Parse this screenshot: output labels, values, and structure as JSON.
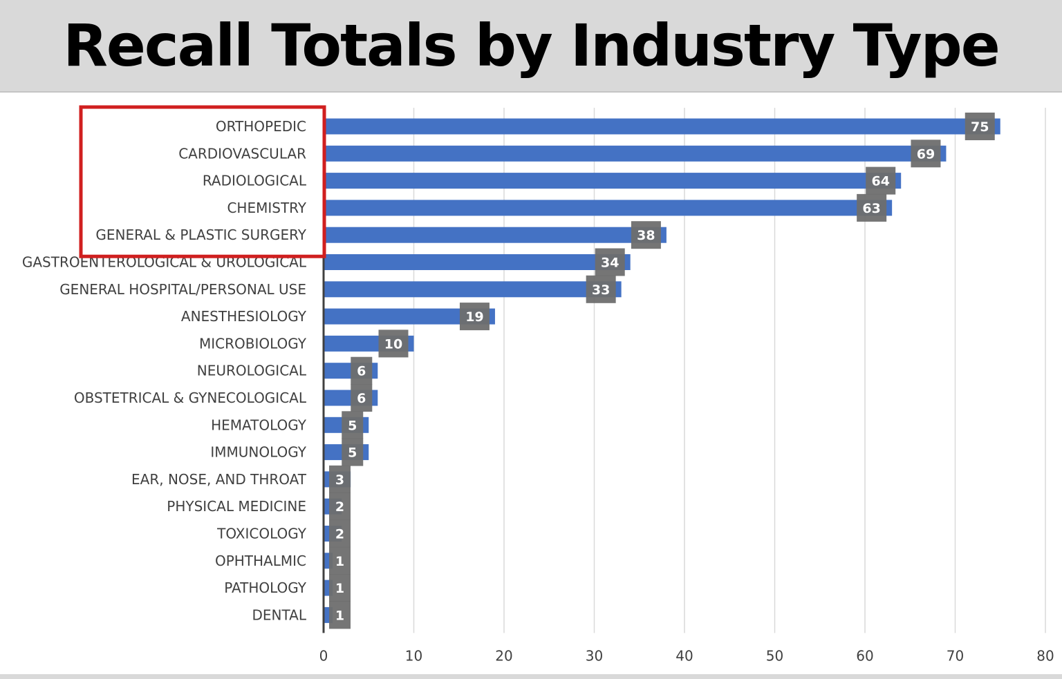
{
  "title": "Recall Totals by Industry Type",
  "colors": {
    "bar": "#4472c4",
    "data_label_box": "#6e6e6e",
    "highlight_box": "#d01f1f",
    "gridline": "#d9d9d9",
    "axis": "#404040"
  },
  "highlight": {
    "categories": [
      "ORTHOPEDIC",
      "CARDIOVASCULAR",
      "RADIOLOGICAL",
      "CHEMISTRY",
      "GENERAL & PLASTIC SURGERY"
    ]
  },
  "chart_data": {
    "type": "bar",
    "orientation": "horizontal",
    "title": "Recall Totals by Industry Type",
    "xlabel": "",
    "ylabel": "",
    "xlim": [
      0,
      80
    ],
    "xticks": [
      0,
      10,
      20,
      30,
      40,
      50,
      60,
      70,
      80
    ],
    "grid": true,
    "categories": [
      "ORTHOPEDIC",
      "CARDIOVASCULAR",
      "RADIOLOGICAL",
      "CHEMISTRY",
      "GENERAL & PLASTIC SURGERY",
      "GASTROENTEROLOGICAL & UROLOGICAL",
      "GENERAL HOSPITAL/PERSONAL USE",
      "ANESTHESIOLOGY",
      "MICROBIOLOGY",
      "NEUROLOGICAL",
      "OBSTETRICAL & GYNECOLOGICAL",
      "HEMATOLOGY",
      "IMMUNOLOGY",
      "EAR, NOSE, AND THROAT",
      "PHYSICAL MEDICINE",
      "TOXICOLOGY",
      "OPHTHALMIC",
      "PATHOLOGY",
      "DENTAL"
    ],
    "values": [
      75,
      69,
      64,
      63,
      38,
      34,
      33,
      19,
      10,
      6,
      6,
      5,
      5,
      3,
      2,
      2,
      1,
      1,
      1
    ]
  }
}
